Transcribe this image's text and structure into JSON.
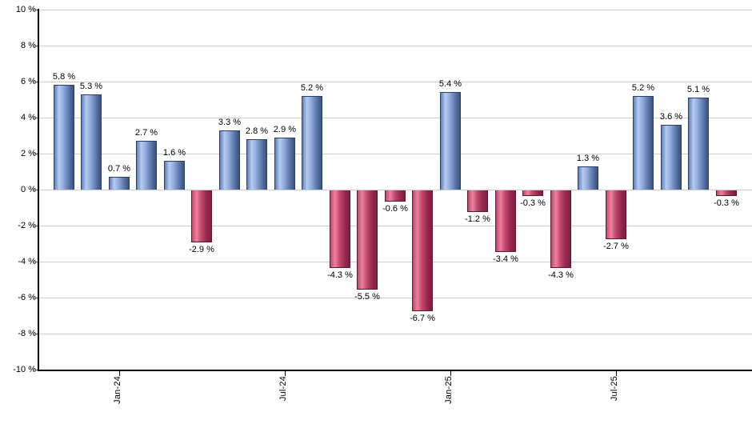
{
  "chart_data": {
    "type": "bar",
    "title": "",
    "xlabel": "",
    "ylabel": "",
    "ylim": [
      -10,
      10
    ],
    "grid": true,
    "legend": "none",
    "unit": "%",
    "values": [
      5.8,
      5.3,
      0.7,
      2.7,
      1.6,
      -2.9,
      3.3,
      2.8,
      2.9,
      5.2,
      -4.3,
      -5.5,
      -0.6,
      -6.7,
      5.4,
      -1.2,
      -3.4,
      -0.3,
      -4.3,
      1.3,
      -2.7,
      5.2,
      3.6,
      5.1,
      -0.3
    ],
    "bar_labels": [
      "5.8 %",
      "5.3 %",
      "0.7 %",
      "2.7 %",
      "1.6 %",
      "-2.9 %",
      "3.3 %",
      "2.8 %",
      "2.9 %",
      "5.2 %",
      "-4.3 %",
      "-5.5 %",
      "-0.6 %",
      "-6.7 %",
      "5.4 %",
      "-1.2 %",
      "-3.4 %",
      "-0.3 %",
      "-4.3 %",
      "1.3 %",
      "-2.7 %",
      "5.2 %",
      "3.6 %",
      "5.1 %",
      "-0.3 %"
    ],
    "x_ticks": [
      {
        "label": "Jan-24",
        "bar_index": 2
      },
      {
        "label": "Jul-24",
        "bar_index": 8
      },
      {
        "label": "Jan-25",
        "bar_index": 14
      },
      {
        "label": "Jul-25",
        "bar_index": 20
      }
    ],
    "y_ticks": [
      {
        "label": "10 %",
        "value": 10
      },
      {
        "label": "8 %",
        "value": 8
      },
      {
        "label": "6 %",
        "value": 6
      },
      {
        "label": "4 %",
        "value": 4
      },
      {
        "label": "2 %",
        "value": 2
      },
      {
        "label": "0 %",
        "value": 0
      },
      {
        "label": "-2 %",
        "value": -2
      },
      {
        "label": "-4 %",
        "value": -4
      },
      {
        "label": "-6 %",
        "value": -6
      },
      {
        "label": "-8 %",
        "value": -8
      },
      {
        "label": "-10 %",
        "value": -10
      }
    ],
    "colors": {
      "positive_gradient": [
        "#5d82c0",
        "#b7cbee",
        "#8ca8da",
        "#5a76a8",
        "#3c5278"
      ],
      "negative_gradient": [
        "#c4476c",
        "#ec829e",
        "#c2486b",
        "#94294c",
        "#7b2040"
      ],
      "positive_border": "#2e3f60",
      "negative_border": "#611733",
      "gridline": "#cccccc",
      "axis": "#000000",
      "label_text": "#000000",
      "background": "#ffffff"
    }
  }
}
